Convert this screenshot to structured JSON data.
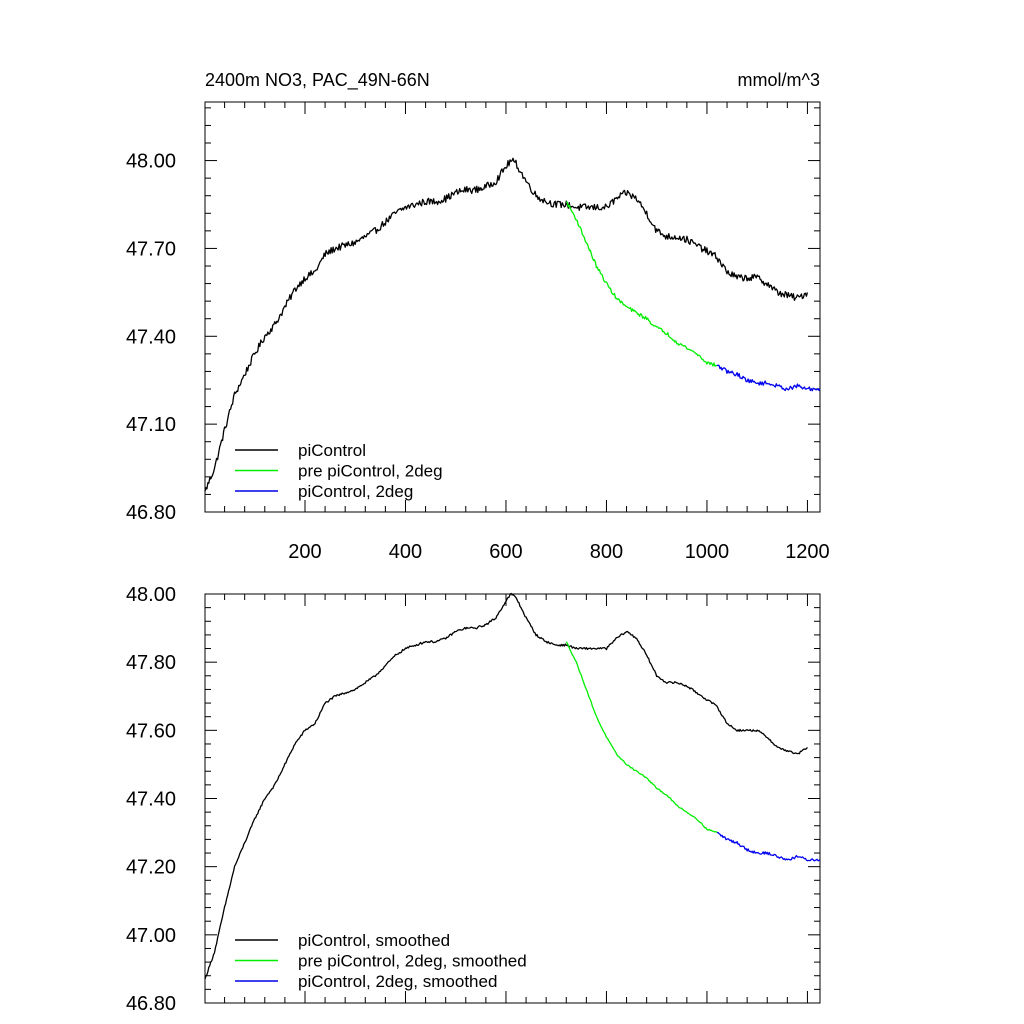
{
  "figure": {
    "title_left": "2400m NO3, PAC_49N-66N",
    "title_right": "mmol/m^3"
  },
  "colors": {
    "piControl": "#000000",
    "pre_piControl_2deg": "#00ee00",
    "piControl_2deg": "#0000ee"
  },
  "chart_data": [
    {
      "type": "line",
      "panel": "top",
      "title": "2400m NO3, PAC_49N-66N",
      "units": "mmol/m^3",
      "xlim": [
        1,
        1225
      ],
      "ylim": [
        46.8,
        48.2
      ],
      "x_ticks": [
        200,
        400,
        600,
        800,
        1000,
        1200
      ],
      "x_tick_labels": [
        "200",
        "400",
        "600",
        "800",
        "1000",
        "1200"
      ],
      "y_ticks": [
        46.8,
        47.1,
        47.4,
        47.7,
        48.0
      ],
      "y_tick_labels": [
        "46.80",
        "47.10",
        "47.40",
        "47.70",
        "48.00"
      ],
      "legend_position": "bottom-left",
      "series": [
        {
          "name": "piControl",
          "color": "#000000",
          "noise": 0.012,
          "points": [
            [
              1,
              46.87
            ],
            [
              20,
              46.95
            ],
            [
              40,
              47.08
            ],
            [
              60,
              47.2
            ],
            [
              80,
              47.27
            ],
            [
              100,
              47.34
            ],
            [
              120,
              47.4
            ],
            [
              140,
              47.44
            ],
            [
              160,
              47.5
            ],
            [
              180,
              47.56
            ],
            [
              200,
              47.6
            ],
            [
              220,
              47.62
            ],
            [
              240,
              47.68
            ],
            [
              260,
              47.7
            ],
            [
              280,
              47.71
            ],
            [
              300,
              47.72
            ],
            [
              320,
              47.74
            ],
            [
              340,
              47.76
            ],
            [
              360,
              47.79
            ],
            [
              380,
              47.82
            ],
            [
              400,
              47.84
            ],
            [
              420,
              47.85
            ],
            [
              440,
              47.86
            ],
            [
              460,
              47.86
            ],
            [
              480,
              47.87
            ],
            [
              500,
              47.89
            ],
            [
              520,
              47.9
            ],
            [
              540,
              47.9
            ],
            [
              560,
              47.91
            ],
            [
              580,
              47.93
            ],
            [
              600,
              47.98
            ],
            [
              610,
              48.0
            ],
            [
              620,
              47.99
            ],
            [
              640,
              47.93
            ],
            [
              660,
              47.88
            ],
            [
              680,
              47.86
            ],
            [
              700,
              47.85
            ],
            [
              720,
              47.85
            ],
            [
              740,
              47.84
            ],
            [
              760,
              47.84
            ],
            [
              780,
              47.84
            ],
            [
              800,
              47.84
            ],
            [
              820,
              47.87
            ],
            [
              840,
              47.89
            ],
            [
              860,
              47.87
            ],
            [
              880,
              47.82
            ],
            [
              900,
              47.76
            ],
            [
              920,
              47.74
            ],
            [
              940,
              47.74
            ],
            [
              960,
              47.73
            ],
            [
              980,
              47.71
            ],
            [
              1000,
              47.69
            ],
            [
              1020,
              47.67
            ],
            [
              1040,
              47.62
            ],
            [
              1060,
              47.6
            ],
            [
              1080,
              47.6
            ],
            [
              1100,
              47.6
            ],
            [
              1120,
              47.58
            ],
            [
              1140,
              47.55
            ],
            [
              1160,
              47.54
            ],
            [
              1180,
              47.53
            ],
            [
              1200,
              47.55
            ]
          ]
        },
        {
          "name": "pre piControl, 2deg",
          "color": "#00ee00",
          "noise": 0.006,
          "points": [
            [
              720,
              47.86
            ],
            [
              740,
              47.8
            ],
            [
              760,
              47.72
            ],
            [
              780,
              47.64
            ],
            [
              800,
              47.58
            ],
            [
              820,
              47.53
            ],
            [
              840,
              47.5
            ],
            [
              860,
              47.48
            ],
            [
              880,
              47.46
            ],
            [
              900,
              47.43
            ],
            [
              920,
              47.41
            ],
            [
              940,
              47.38
            ],
            [
              960,
              47.36
            ],
            [
              980,
              47.34
            ],
            [
              1000,
              47.31
            ],
            [
              1020,
              47.3
            ]
          ]
        },
        {
          "name": "piControl, 2deg",
          "color": "#0000ee",
          "noise": 0.007,
          "points": [
            [
              1020,
              47.3
            ],
            [
              1040,
              47.28
            ],
            [
              1060,
              47.27
            ],
            [
              1080,
              47.25
            ],
            [
              1100,
              47.24
            ],
            [
              1120,
              47.24
            ],
            [
              1140,
              47.23
            ],
            [
              1160,
              47.22
            ],
            [
              1180,
              47.23
            ],
            [
              1200,
              47.22
            ],
            [
              1225,
              47.22
            ]
          ]
        }
      ],
      "legend": [
        {
          "label": "piControl",
          "color": "#000000"
        },
        {
          "label": "pre piControl, 2deg",
          "color": "#00ee00"
        },
        {
          "label": "piControl, 2deg",
          "color": "#0000ee"
        }
      ]
    },
    {
      "type": "line",
      "panel": "bottom",
      "xlim": [
        1,
        1225
      ],
      "ylim": [
        46.8,
        48.0
      ],
      "x_ticks": [
        200,
        400,
        600,
        800,
        1000,
        1200
      ],
      "y_ticks": [
        46.8,
        47.0,
        47.2,
        47.4,
        47.6,
        47.8,
        48.0
      ],
      "y_tick_labels": [
        "46.80",
        "47.00",
        "47.20",
        "47.40",
        "47.60",
        "47.80",
        "48.00"
      ],
      "legend_position": "bottom-left",
      "series": [
        {
          "name": "piControl, smoothed",
          "color": "#000000",
          "noise": 0.003,
          "points": [
            [
              1,
              46.87
            ],
            [
              20,
              46.95
            ],
            [
              40,
              47.08
            ],
            [
              60,
              47.2
            ],
            [
              80,
              47.27
            ],
            [
              100,
              47.34
            ],
            [
              120,
              47.4
            ],
            [
              140,
              47.44
            ],
            [
              160,
              47.5
            ],
            [
              180,
              47.56
            ],
            [
              200,
              47.6
            ],
            [
              220,
              47.62
            ],
            [
              240,
              47.68
            ],
            [
              260,
              47.7
            ],
            [
              280,
              47.71
            ],
            [
              300,
              47.72
            ],
            [
              320,
              47.74
            ],
            [
              340,
              47.76
            ],
            [
              360,
              47.79
            ],
            [
              380,
              47.82
            ],
            [
              400,
              47.84
            ],
            [
              420,
              47.85
            ],
            [
              440,
              47.86
            ],
            [
              460,
              47.86
            ],
            [
              480,
              47.87
            ],
            [
              500,
              47.89
            ],
            [
              520,
              47.9
            ],
            [
              540,
              47.9
            ],
            [
              560,
              47.91
            ],
            [
              580,
              47.93
            ],
            [
              600,
              47.98
            ],
            [
              610,
              48.0
            ],
            [
              620,
              47.99
            ],
            [
              640,
              47.93
            ],
            [
              660,
              47.88
            ],
            [
              680,
              47.86
            ],
            [
              700,
              47.85
            ],
            [
              720,
              47.85
            ],
            [
              740,
              47.84
            ],
            [
              760,
              47.84
            ],
            [
              780,
              47.84
            ],
            [
              800,
              47.84
            ],
            [
              820,
              47.87
            ],
            [
              840,
              47.89
            ],
            [
              860,
              47.87
            ],
            [
              880,
              47.82
            ],
            [
              900,
              47.76
            ],
            [
              920,
              47.74
            ],
            [
              940,
              47.74
            ],
            [
              960,
              47.73
            ],
            [
              980,
              47.71
            ],
            [
              1000,
              47.69
            ],
            [
              1020,
              47.67
            ],
            [
              1040,
              47.62
            ],
            [
              1060,
              47.6
            ],
            [
              1080,
              47.6
            ],
            [
              1100,
              47.6
            ],
            [
              1120,
              47.58
            ],
            [
              1140,
              47.55
            ],
            [
              1160,
              47.54
            ],
            [
              1180,
              47.53
            ],
            [
              1200,
              47.55
            ]
          ]
        },
        {
          "name": "pre piControl, 2deg, smoothed",
          "color": "#00ee00",
          "noise": 0.002,
          "points": [
            [
              720,
              47.86
            ],
            [
              740,
              47.8
            ],
            [
              760,
              47.72
            ],
            [
              780,
              47.64
            ],
            [
              800,
              47.58
            ],
            [
              820,
              47.53
            ],
            [
              840,
              47.5
            ],
            [
              860,
              47.48
            ],
            [
              880,
              47.46
            ],
            [
              900,
              47.43
            ],
            [
              920,
              47.41
            ],
            [
              940,
              47.38
            ],
            [
              960,
              47.36
            ],
            [
              980,
              47.34
            ],
            [
              1000,
              47.31
            ],
            [
              1020,
              47.3
            ]
          ]
        },
        {
          "name": "piControl, 2deg, smoothed",
          "color": "#0000ee",
          "noise": 0.004,
          "points": [
            [
              1020,
              47.3
            ],
            [
              1040,
              47.28
            ],
            [
              1060,
              47.27
            ],
            [
              1080,
              47.25
            ],
            [
              1100,
              47.24
            ],
            [
              1120,
              47.24
            ],
            [
              1140,
              47.23
            ],
            [
              1160,
              47.22
            ],
            [
              1180,
              47.23
            ],
            [
              1200,
              47.22
            ],
            [
              1225,
              47.22
            ]
          ]
        }
      ],
      "legend": [
        {
          "label": "piControl, smoothed",
          "color": "#000000"
        },
        {
          "label": "pre piControl, 2deg, smoothed",
          "color": "#00ee00"
        },
        {
          "label": "piControl, 2deg, smoothed",
          "color": "#0000ee"
        }
      ]
    }
  ]
}
